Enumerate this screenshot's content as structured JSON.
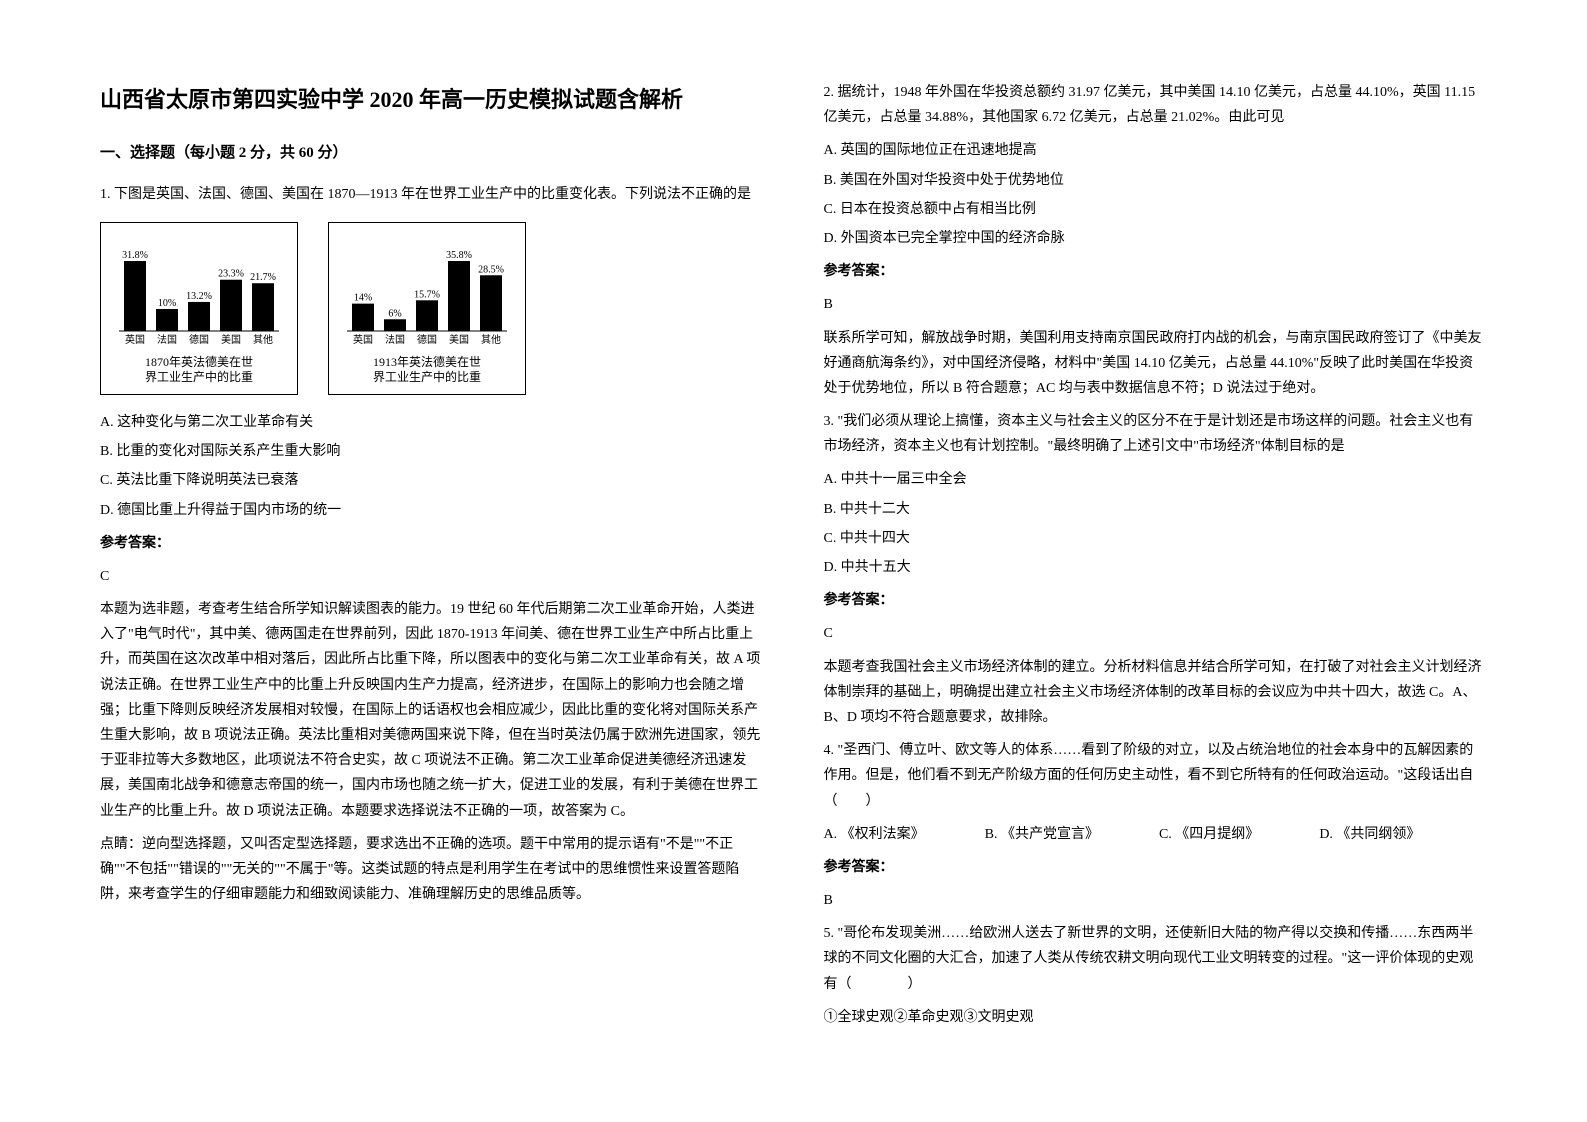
{
  "title": "山西省太原市第四实验中学 2020 年高一历史模拟试题含解析",
  "section1_head": "一、选择题（每小题 2 分，共 60 分）",
  "q1": {
    "stem": "1. 下图是英国、法国、德国、美国在 1870—1913 年在世界工业生产中的比重变化表。下列说法不正确的是",
    "chart1": {
      "categories": [
        "英国",
        "法国",
        "德国",
        "美国",
        "其他"
      ],
      "labels": [
        "31.8%",
        "10%",
        "13.2%",
        "23.3%",
        "21.7%"
      ],
      "values": [
        31.8,
        10,
        13.2,
        23.3,
        21.7
      ],
      "bar_color": "#000000",
      "caption": "1870年英法德美在世\n界工业生产中的比重"
    },
    "chart2": {
      "categories": [
        "英国",
        "法国",
        "德国",
        "美国",
        "其他"
      ],
      "labels": [
        "14%",
        "6%",
        "15.7%",
        "35.8%",
        "28.5%"
      ],
      "values": [
        14,
        6,
        15.7,
        35.8,
        28.5
      ],
      "bar_color": "#000000",
      "caption": "1913年英法德美在世\n界工业生产中的比重"
    },
    "optA": "A. 这种变化与第二次工业革命有关",
    "optB": "B. 比重的变化对国际关系产生重大影响",
    "optC": "C. 英法比重下降说明英法已衰落",
    "optD": "D. 德国比重上升得益于国内市场的统一",
    "ans_label": "参考答案：",
    "ans": "C",
    "exp": "本题为选非题，考查考生结合所学知识解读图表的能力。19 世纪 60 年代后期第二次工业革命开始，人类进入了\"电气时代\"，其中美、德两国走在世界前列，因此 1870-1913 年间美、德在世界工业生产中所占比重上升，而英国在这次改革中相对落后，因此所占比重下降，所以图表中的变化与第二次工业革命有关，故 A 项说法正确。在世界工业生产中的比重上升反映国内生产力提高，经济进步，在国际上的影响力也会随之增强；比重下降则反映经济发展相对较慢，在国际上的话语权也会相应减少，因此比重的变化将对国际关系产生重大影响，故 B 项说法正确。英法比重相对美德两国来说下降，但在当时英法仍属于欧洲先进国家，领先于亚非拉等大多数地区，此项说法不符合史实，故 C 项说法不正确。第二次工业革命促进美德经济迅速发展，美国南北战争和德意志帝国的统一，国内市场也随之统一扩大，促进工业的发展，有利于美德在世界工业生产的比重上升。故 D 项说法正确。本题要求选择说法不正确的一项，故答案为 C。",
    "tip": "点睛：逆向型选择题，又叫否定型选择题，要求选出不正确的选项。题干中常用的提示语有\"不是\"\"不正确\"\"不包括\"\"错误的\"\"无关的\"\"不属于\"等。这类试题的特点是利用学生在考试中的思维惯性来设置答题陷阱，来考查学生的仔细审题能力和细致阅读能力、准确理解历史的思维品质等。"
  },
  "q2": {
    "stem": "2. 据统计，1948 年外国在华投资总额约 31.97 亿美元，其中美国 14.10 亿美元，占总量 44.10%，英国 11.15 亿美元，占总量 34.88%，其他国家 6.72 亿美元，占总量 21.02%。由此可见",
    "optA": "A. 英国的国际地位正在迅速地提高",
    "optB": "B. 美国在外国对华投资中处于优势地位",
    "optC": "C. 日本在投资总额中占有相当比例",
    "optD": "D. 外国资本已完全掌控中国的经济命脉",
    "ans_label": "参考答案：",
    "ans": "B",
    "exp": "联系所学可知，解放战争时期，美国利用支持南京国民政府打内战的机会，与南京国民政府签订了《中美友好通商航海条约》，对中国经济侵略，材料中\"美国 14.10 亿美元，占总量 44.10%\"反映了此时美国在华投资处于优势地位，所以 B 符合题意；AC 均与表中数据信息不符；D 说法过于绝对。"
  },
  "q3": {
    "stem": "3. \"我们必须从理论上搞懂，资本主义与社会主义的区分不在于是计划还是市场这样的问题。社会主义也有市场经济，资本主义也有计划控制。\"最终明确了上述引文中\"市场经济\"体制目标的是",
    "optA": "A. 中共十一届三中全会",
    "optB": "B. 中共十二大",
    "optC": "C. 中共十四大",
    "optD": "D. 中共十五大",
    "ans_label": "参考答案：",
    "ans": "C",
    "exp": "本题考查我国社会主义市场经济体制的建立。分析材料信息并结合所学可知，在打破了对社会主义计划经济体制崇拜的基础上，明确提出建立社会主义市场经济体制的改革目标的会议应为中共十四大，故选 C。A、B、D 项均不符合题意要求，故排除。"
  },
  "q4": {
    "stem": "4. \"圣西门、傅立叶、欧文等人的体系……看到了阶级的对立，以及占统治地位的社会本身中的瓦解因素的作用。但是，他们看不到无产阶级方面的任何历史主动性，看不到它所特有的任何政治运动。\"这段话出自（　　）",
    "optA": "A. 《权利法案》",
    "optB": "B. 《共产党宣言》",
    "optC": "C. 《四月提纲》",
    "optD": "D. 《共同纲领》",
    "ans_label": "参考答案：",
    "ans": "B"
  },
  "q5": {
    "stem": "5. \"哥伦布发现美洲……给欧洲人送去了新世界的文明，还使新旧大陆的物产得以交换和传播……东西两半球的不同文化圈的大汇合，加速了人类从传统农耕文明向现代工业文明转变的过程。\"这一评价体现的史观有（　　　　）",
    "numlist": "①全球史观②革命史观③文明史观"
  }
}
